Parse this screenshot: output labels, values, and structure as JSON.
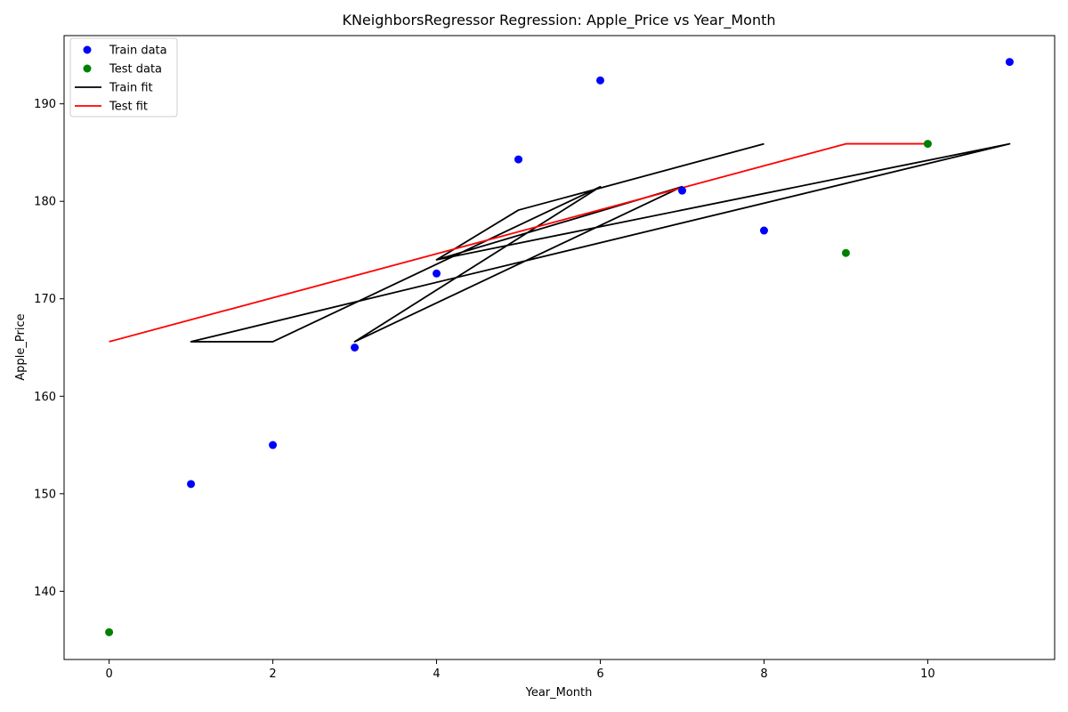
{
  "chart_data": {
    "type": "scatter",
    "title": "KNeighborsRegressor Regression: Apple_Price vs Year_Month",
    "xlabel": "Year_Month",
    "ylabel": "Apple_Price",
    "xlim": [
      -0.55,
      11.55
    ],
    "ylim": [
      133.0,
      197.0
    ],
    "xticks": [
      0,
      2,
      4,
      6,
      8,
      10
    ],
    "yticks": [
      140,
      150,
      160,
      170,
      180,
      190
    ],
    "grid": false,
    "legend_position": "top-left",
    "series": [
      {
        "name": "Train data",
        "kind": "scatter",
        "color": "#0000ff",
        "x": [
          1,
          2,
          3,
          4,
          5,
          6,
          7,
          8,
          11
        ],
        "y": [
          151.0,
          155.0,
          165.0,
          172.6,
          184.3,
          192.4,
          181.1,
          177.0,
          194.3
        ]
      },
      {
        "name": "Test data",
        "kind": "scatter",
        "color": "#008000",
        "x": [
          0,
          9,
          10
        ],
        "y": [
          135.8,
          174.7,
          185.9
        ]
      },
      {
        "name": "Train fit",
        "kind": "line",
        "color": "#000000",
        "x": [
          8,
          5,
          4,
          7,
          3,
          6,
          2,
          1,
          11,
          4,
          7,
          3
        ],
        "y": [
          185.9,
          179.1,
          174.0,
          181.5,
          165.6,
          181.5,
          165.6,
          165.6,
          185.9,
          174.0,
          181.5,
          165.6
        ]
      },
      {
        "name": "Test fit",
        "kind": "line",
        "color": "#ff0000",
        "x": [
          0,
          9,
          10
        ],
        "y": [
          165.6,
          185.9,
          185.9
        ]
      }
    ]
  }
}
